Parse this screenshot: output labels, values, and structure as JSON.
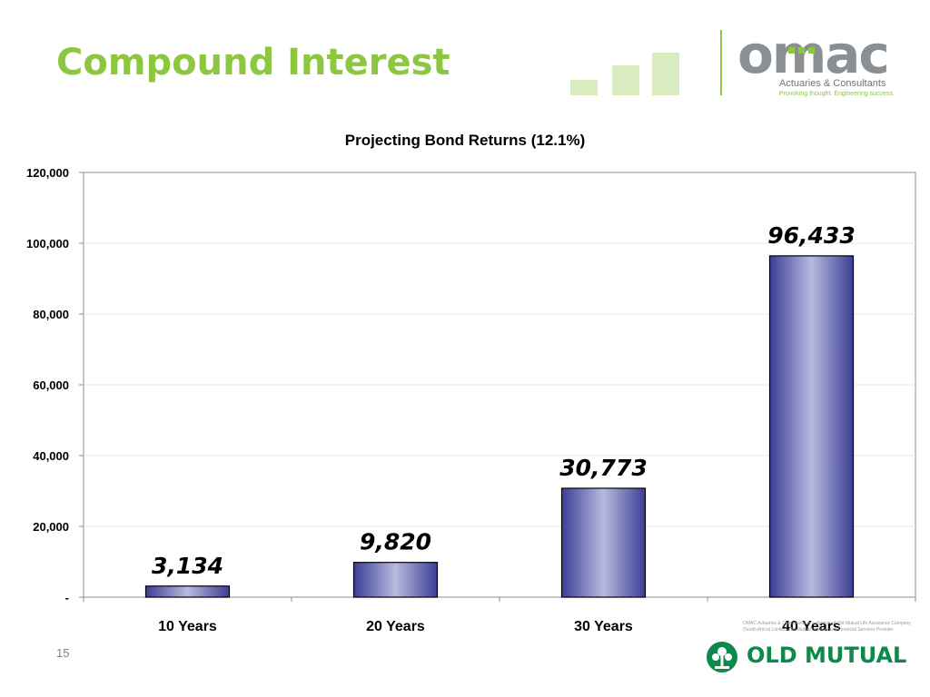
{
  "slide": {
    "title": "Compound Interest",
    "page_number": "15",
    "footer_note": "OMAC Actuaries & Consultants is a division of Old Mutual Life Assurance Company (South Africa) Limited. Old Mutual is a licensed Financial Services Provider"
  },
  "branding": {
    "omac_name": "omac",
    "omac_tagline": "Actuaries & Consultants",
    "omac_slogan": "Provoking thought. Engineering success.",
    "old_mutual_name": "OLD MUTUAL",
    "colors": {
      "title_green": "#8dc63f",
      "omac_grey": "#8a8f93",
      "old_mutual_green": "#0b8a4b"
    },
    "icons": [
      "decorative-squares-icon",
      "old-mutual-tree-icon"
    ]
  },
  "chart_data": {
    "type": "bar",
    "title": "Projecting Bond Returns (12.1%)",
    "categories": [
      "10 Years",
      "20 Years",
      "30 Years",
      "40 Years"
    ],
    "values": [
      3134,
      9820,
      30773,
      96433
    ],
    "value_labels": [
      "3,134",
      "9,820",
      "30,773",
      "96,433"
    ],
    "xlabel": "",
    "ylabel": "",
    "ylim": [
      0,
      120000
    ],
    "y_ticks": [
      0,
      20000,
      40000,
      60000,
      80000,
      100000,
      120000
    ],
    "y_tick_labels": [
      "-",
      "20,000",
      "40,000",
      "60,000",
      "80,000",
      "100,000",
      "120,000"
    ],
    "grid": true,
    "legend": "none",
    "bar_colors": {
      "edge": "#3b3e94",
      "center": "#b8bae0"
    }
  }
}
